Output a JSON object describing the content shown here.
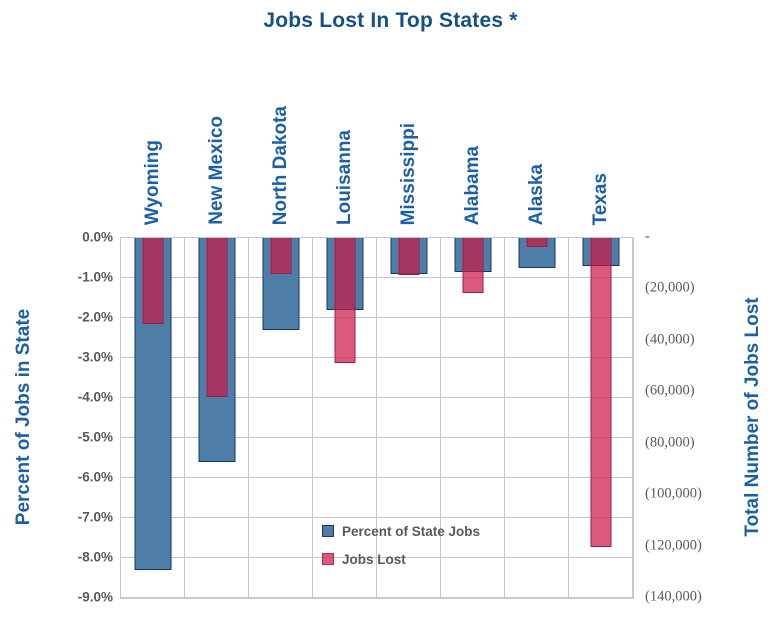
{
  "title": "Jobs Lost In Top States *",
  "left_axis": {
    "title": "Percent of Jobs in State",
    "ticks": [
      "0.0%",
      "-1.0%",
      "-2.0%",
      "-3.0%",
      "-4.0%",
      "-5.0%",
      "-6.0%",
      "-7.0%",
      "-8.0%",
      "-9.0%"
    ]
  },
  "right_axis": {
    "title": "Total Number of Jobs Lost",
    "ticks": [
      "-",
      "(20,000)",
      "(40,000)",
      "(60,000)",
      "(80,000)",
      "(100,000)",
      "(120,000)",
      "(140,000)"
    ]
  },
  "legend": {
    "items": [
      {
        "label": "Percent of State Jobs",
        "color": "#4E7EA7"
      },
      {
        "label": "Jobs Lost",
        "color": "#DC6582"
      }
    ]
  },
  "chart_data": {
    "type": "bar",
    "categories": [
      "Wyoming",
      "New Mexico",
      "North Dakota",
      "Louisanna",
      "Mississippi",
      "Alabama",
      "Alaska",
      "Texas"
    ],
    "series": [
      {
        "name": "Percent of State Jobs",
        "axis": "left",
        "values": [
          -8.3,
          -5.6,
          -2.3,
          -1.8,
          -0.9,
          -0.85,
          -0.75,
          -0.7
        ]
      },
      {
        "name": "Jobs Lost",
        "axis": "right",
        "values": [
          -33500,
          -62000,
          -14000,
          -48500,
          -14500,
          -21500,
          -3500,
          -120000
        ]
      }
    ],
    "title": "Jobs Lost In Top States *",
    "left_ylabel": "Percent of Jobs in State",
    "right_ylabel": "Total Number of Jobs Lost",
    "left_ylim": [
      0,
      -9
    ],
    "right_ylim": [
      0,
      -140000
    ],
    "grid": true,
    "legend_position": "inside-lower-right",
    "bar_orientation": "vertical-hanging-from-zero"
  },
  "colors": {
    "title_blue": "#174F87",
    "label_blue": "#1C5FA6",
    "tick_gray": "#595959",
    "gridline": "#C9C9C9",
    "bar_percent_fill": "#4E7EA7",
    "bar_percent_border": "#17375E",
    "bar_jobs_fill": "#DC6582",
    "bar_jobs_overlap": "#A23355",
    "bar_jobs_border": "#9E1D47",
    "background": "#FFFFFF"
  }
}
